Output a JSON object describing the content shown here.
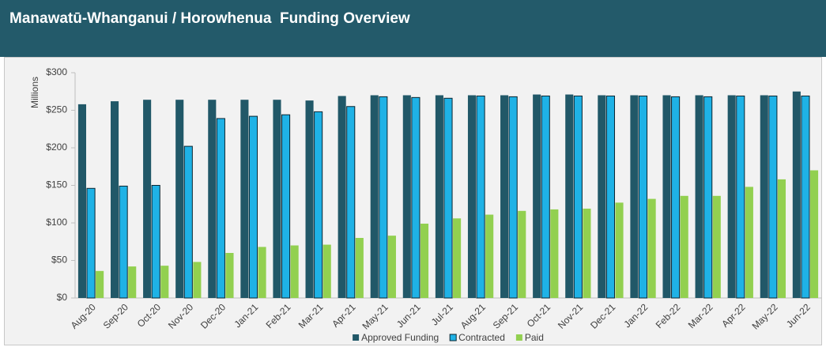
{
  "chart_data": {
    "type": "bar",
    "title": "Manawatū-Whanganui / Horowhenua  Funding Overview",
    "y_label": "Millions",
    "categories": [
      "Aug-20",
      "Sep-20",
      "Oct-20",
      "Nov-20",
      "Dec-20",
      "Jan-21",
      "Feb-21",
      "Mar-21",
      "Apr-21",
      "May-21",
      "Jun-21",
      "Jul-21",
      "Aug-21",
      "Sep-21",
      "Oct-21",
      "Nov-21",
      "Dec-21",
      "Jan-22",
      "Feb-22",
      "Mar-22",
      "Apr-22",
      "May-22",
      "Jun-22"
    ],
    "series": [
      {
        "name": "Approved Funding",
        "color": "#215868",
        "values": [
          258,
          262,
          264,
          264,
          264,
          264,
          264,
          263,
          269,
          270,
          270,
          270,
          270,
          270,
          271,
          271,
          270,
          270,
          270,
          270,
          270,
          270,
          275
        ]
      },
      {
        "name": "Contracted",
        "color": "#1fb2e6",
        "values": [
          146,
          149,
          150,
          202,
          239,
          242,
          244,
          248,
          255,
          268,
          267,
          266,
          269,
          268,
          269,
          269,
          269,
          269,
          268,
          268,
          269,
          269,
          269
        ]
      },
      {
        "name": "Paid",
        "color": "#92d050",
        "values": [
          36,
          42,
          43,
          48,
          60,
          68,
          70,
          71,
          80,
          83,
          99,
          106,
          111,
          116,
          118,
          119,
          127,
          132,
          136,
          136,
          148,
          158,
          170
        ]
      }
    ],
    "ylim": [
      0,
      300
    ],
    "yticks": [
      {
        "value": 0,
        "label": "$0"
      },
      {
        "value": 50,
        "label": "$50"
      },
      {
        "value": 100,
        "label": "$100"
      },
      {
        "value": 150,
        "label": "$150"
      },
      {
        "value": 200,
        "label": "$200"
      },
      {
        "value": 250,
        "label": "$250"
      },
      {
        "value": 300,
        "label": "$300"
      }
    ],
    "grid": false,
    "legend": "bottom"
  }
}
